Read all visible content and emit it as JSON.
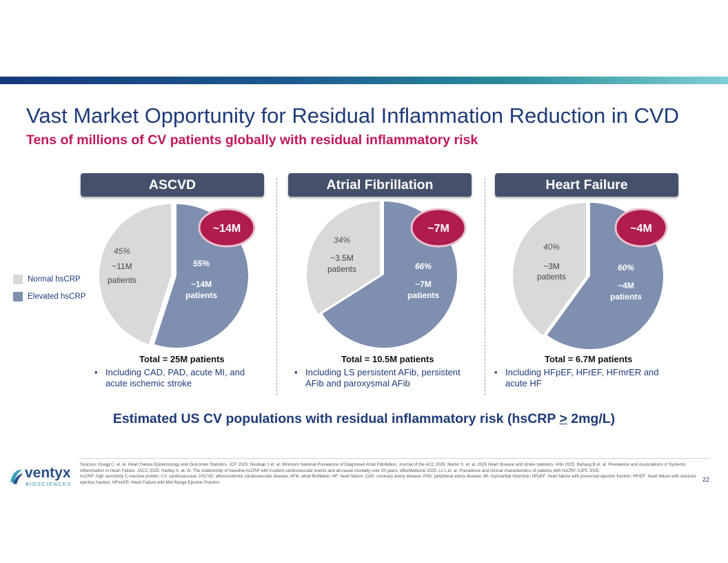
{
  "slide": {
    "title": "Vast Market Opportunity for Residual Inflammation Reduction in CVD",
    "subtitle": "Tens of millions of CV patients globally with residual inflammatory risk",
    "page_number": "22"
  },
  "legend": [
    {
      "label": "Normal hsCRP",
      "color": "#d9d9d9"
    },
    {
      "label": "Elevated hsCRP",
      "color": "#7f8fb0"
    }
  ],
  "colors": {
    "normal": "#d9d9d9",
    "elevated": "#7f8fb0",
    "badge": "#b01c4f",
    "header_bg": "#45506b",
    "title": "#1f3a78",
    "subtitle": "#c2185b"
  },
  "chart_data": [
    {
      "type": "pie",
      "title": "ASCVD",
      "badge": "~14M",
      "slices": [
        {
          "category": "Normal hsCRP",
          "percent": 45,
          "percent_label": "45%",
          "count_label": "~11M",
          "unit_label": "patients"
        },
        {
          "category": "Elevated hsCRP",
          "percent": 55,
          "percent_label": "55%",
          "count_label": "~14M",
          "unit_label": "patients"
        }
      ],
      "total": "Total = 25M patients",
      "note": "Including CAD, PAD, acute MI, and acute ischemic stroke"
    },
    {
      "type": "pie",
      "title": "Atrial Fibrillation",
      "badge": "~7M",
      "slices": [
        {
          "category": "Normal hsCRP",
          "percent": 34,
          "percent_label": "34%",
          "count_label": "~3.5M",
          "unit_label": "patients"
        },
        {
          "category": "Elevated hsCRP",
          "percent": 66,
          "percent_label": "66%",
          "count_label": "~7M",
          "unit_label": "patients"
        }
      ],
      "total": "Total = 10.5M patients",
      "note": "Including LS persistent AFib, persistent AFib and paroxysmal AFib"
    },
    {
      "type": "pie",
      "title": "Heart Failure",
      "badge": "~4M",
      "slices": [
        {
          "category": "Normal hsCRP",
          "percent": 40,
          "percent_label": "40%",
          "count_label": "~3M",
          "unit_label": "patients"
        },
        {
          "category": "Elevated hsCRP",
          "percent": 60,
          "percent_label": "60%",
          "count_label": "~4M",
          "unit_label": "patients"
        }
      ],
      "total": "Total = 6.7M patients",
      "note": "Including HFpEF, HFrEF, HFmrER and acute HF"
    }
  ],
  "estimate": {
    "text_before": "Estimated US CV populations with residual inflammatory risk (hsCRP ",
    "gte_symbol": ">",
    "text_after": " 2mg/L)"
  },
  "logo": {
    "name": "ventyx",
    "tagline": "BIOSCIENCES"
  },
  "sources": {
    "line1": "Sources: Gregg C. et. al. Heart Failure Epidemiology and Outcomes Statistics. JCF 2025; Noubiap J et. al. Minimum National Prevalence of Diagnosed Atrial Fibrillation. Journal of the ACC 2025; Martin S. et. al. 2025 Heart disease and stroke statistics. AHA 2025; Barlaug B et. al. Prevalence and Associations of Systemic Inflammation in Heart Failure. JACC 2025; Hartley A. et. Al. The relationship of baseline hsCRP with incident cardiovascular events and all-cause mortality over 20 years. eBioMedicine 2025. Lv L et. al. Prevalence and clinical characteristics of patients with hsCRP. AJPC 2025.",
    "line2": "hsCRP: high sensitivity C-reactive protein; CV: cardiovascular; ASCVD: atherosclerotic cardiovascular disease; AFib: atrial fibrillation; HF: heart failure; CAD: coronary artery disease; PAD: peripheral artery disease; MI: myocardial infarction; HFpEF: heart failure with preserved ejection fraction; HFrEF: heart failure with reduced ejection fraction; HFmrER: Heart Failure with Mid-Range Ejection Fraction"
  }
}
